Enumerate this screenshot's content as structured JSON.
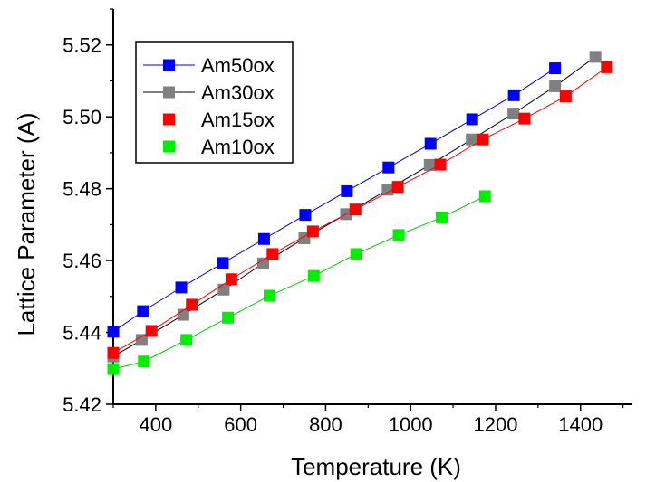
{
  "chart_data": {
    "type": "scatter",
    "title": "",
    "xlabel": "Temperature (K)",
    "ylabel": "Lattice Parameter (A)",
    "xlim": [
      300,
      1520
    ],
    "ylim": [
      5.42,
      5.53
    ],
    "xticks": [
      400,
      600,
      800,
      1000,
      1200,
      1400
    ],
    "yticks": [
      5.42,
      5.44,
      5.46,
      5.48,
      5.5,
      5.52
    ],
    "xtick_labels": [
      "400",
      "600",
      "800",
      "1000",
      "1200",
      "1400"
    ],
    "ytick_labels": [
      "5.42",
      "5.44",
      "5.46",
      "5.48",
      "5.50",
      "5.52"
    ],
    "grid": false,
    "legend_position": "top-left",
    "series": [
      {
        "name": "Am50ox",
        "color": "#0000ff",
        "line_color": "#0000cc",
        "x": [
          300,
          370,
          460,
          558,
          655,
          752,
          850,
          948,
          1047,
          1145,
          1243,
          1340
        ],
        "y": [
          5.4402,
          5.4459,
          5.4525,
          5.4593,
          5.466,
          5.4727,
          5.4793,
          5.4859,
          5.4925,
          5.4993,
          5.506,
          5.5135
        ]
      },
      {
        "name": "Am30ox",
        "color": "#808080",
        "line_color": "#000000",
        "x": [
          300,
          367,
          465,
          560,
          653,
          750,
          848,
          946,
          1045,
          1144,
          1242,
          1340,
          1435
        ],
        "y": [
          5.4333,
          5.4379,
          5.4449,
          5.4519,
          5.4592,
          5.4662,
          5.4729,
          5.4797,
          5.4866,
          5.4937,
          5.5009,
          5.5085,
          5.5167
        ]
      },
      {
        "name": "Am15ox",
        "color": "#ff0000",
        "line_color": "#ff0000",
        "x": [
          300,
          390,
          485,
          578,
          675,
          770,
          870,
          970,
          1070,
          1170,
          1268,
          1365,
          1462
        ],
        "y": [
          5.4343,
          5.4404,
          5.4477,
          5.4548,
          5.4618,
          5.4681,
          5.4742,
          5.4805,
          5.4867,
          5.4937,
          5.4995,
          5.5057,
          5.5138
        ]
      },
      {
        "name": "Am10ox",
        "color": "#00ee00",
        "line_color": "#00cc00",
        "x": [
          300,
          372,
          472,
          570,
          668,
          772,
          872,
          972,
          1073,
          1175
        ],
        "y": [
          5.4298,
          5.4319,
          5.4379,
          5.4441,
          5.4502,
          5.4557,
          5.4618,
          5.4671,
          5.472,
          5.4779
        ]
      }
    ]
  }
}
